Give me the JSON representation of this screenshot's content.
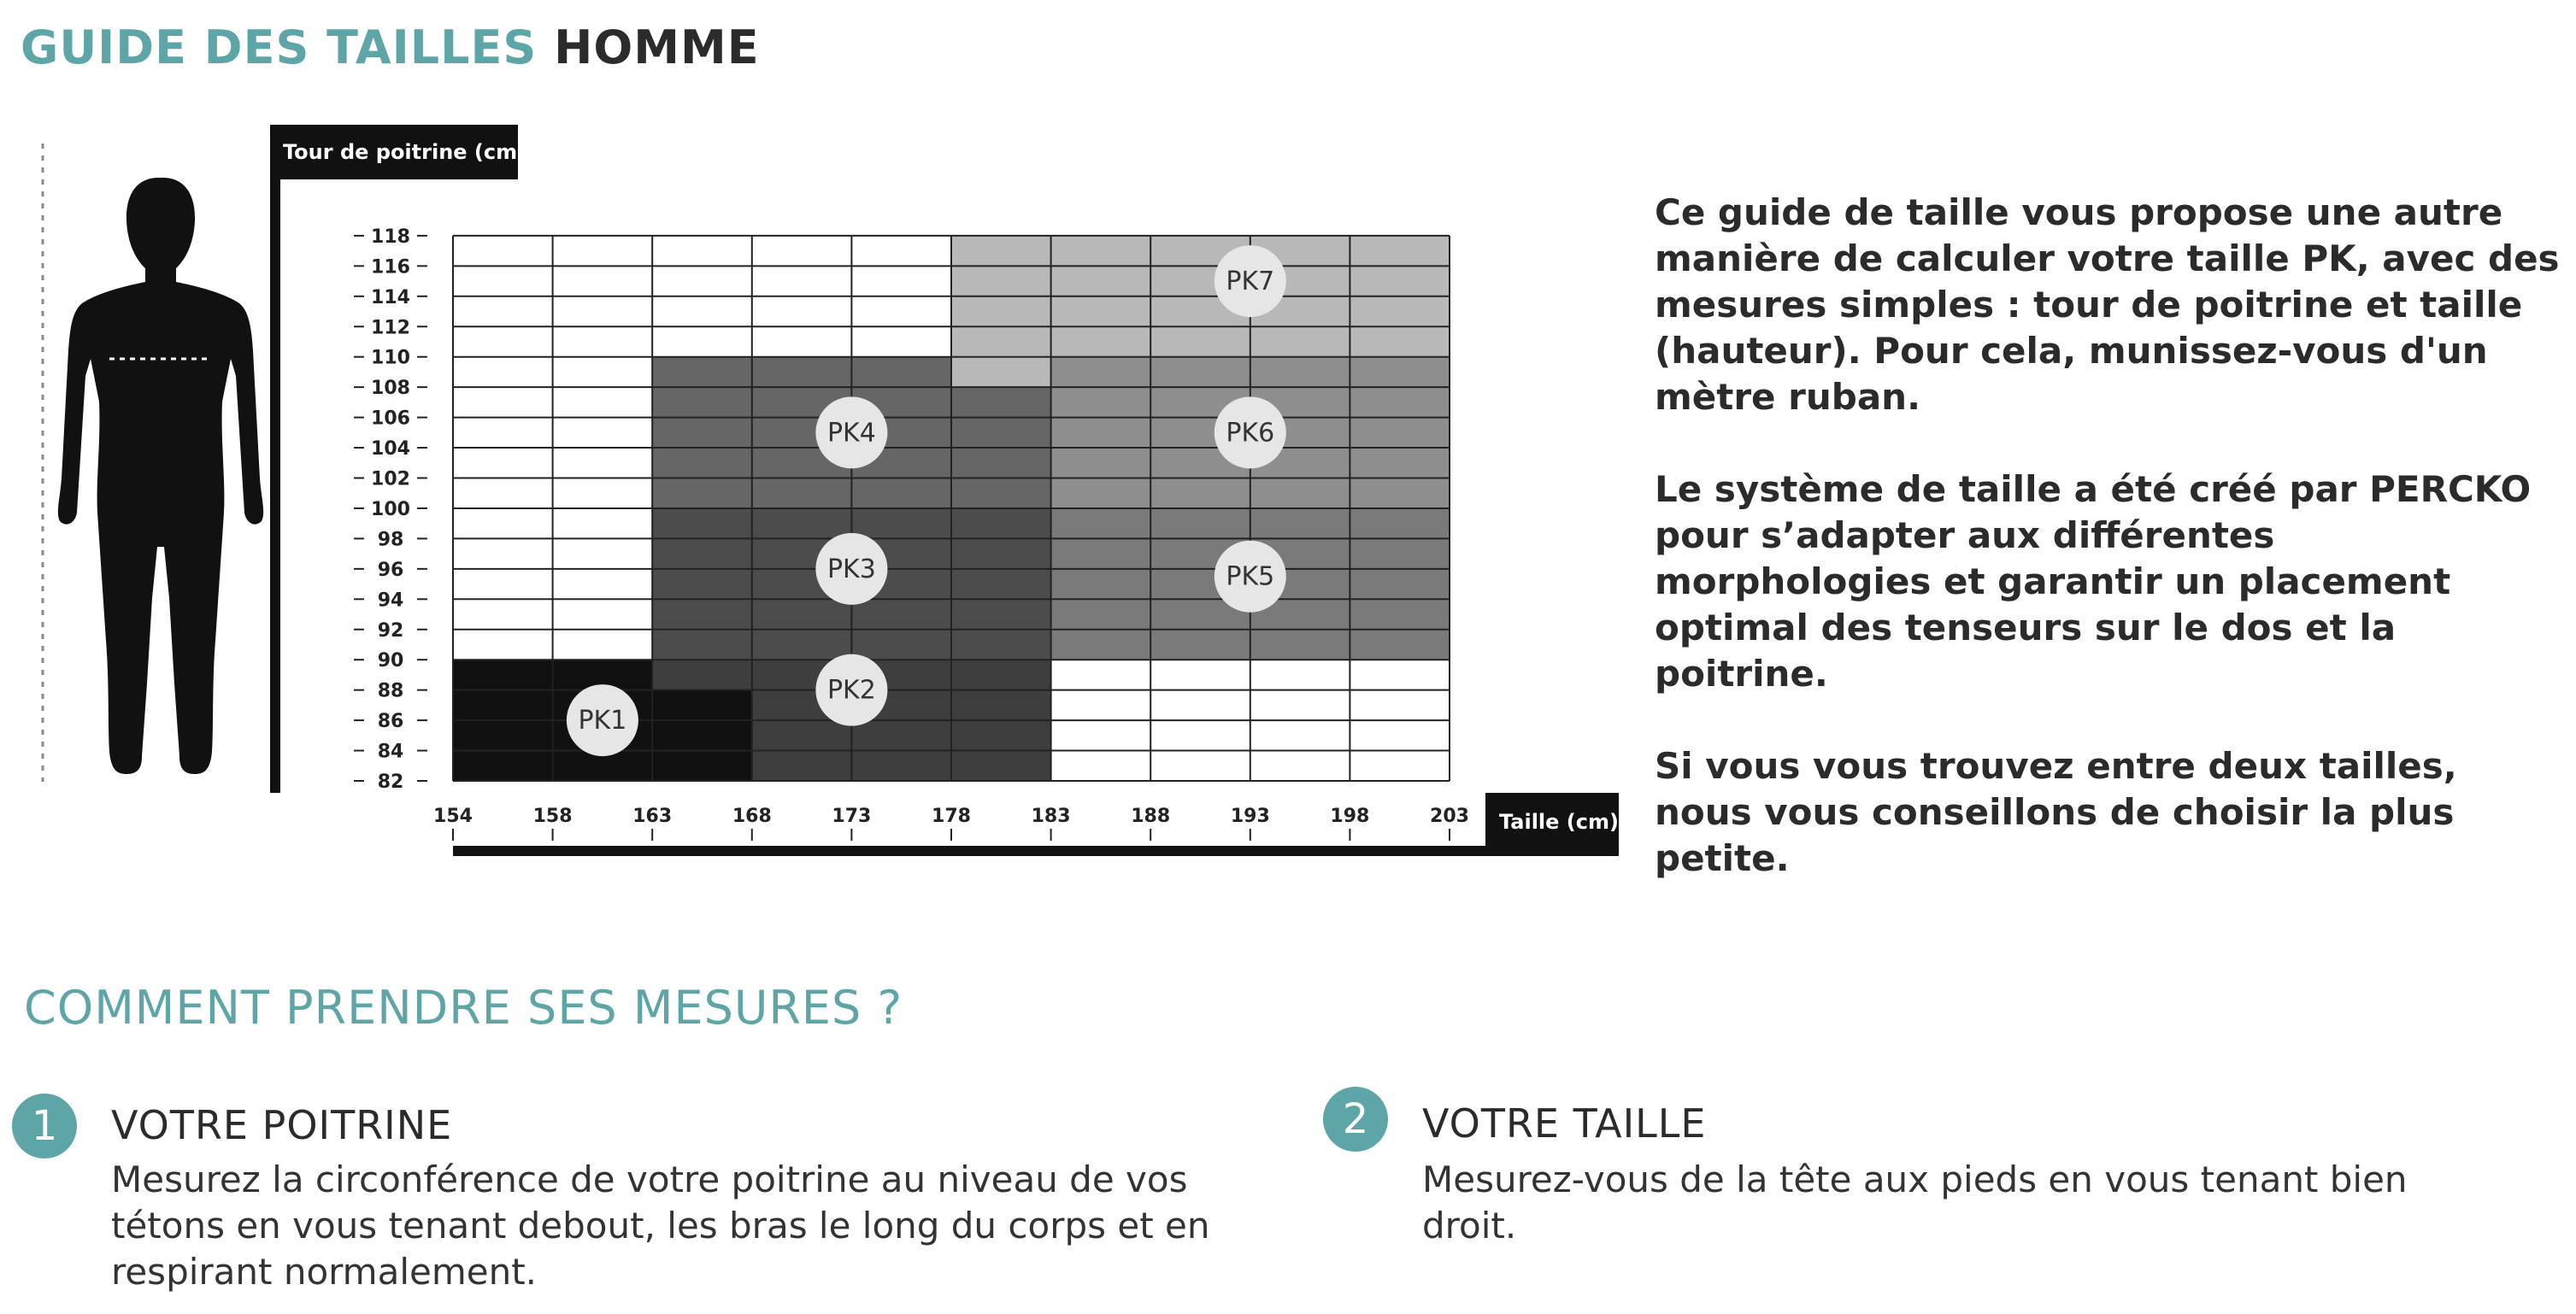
{
  "title": {
    "part1": "GUIDE DES TAILLES",
    "part2": "HOMME"
  },
  "chart_data": {
    "type": "heatmap",
    "ylabel": "Tour de poitrine (cm)",
    "xlabel": "Taille (cm)",
    "x_ticks": [
      "154",
      "158",
      "163",
      "168",
      "173",
      "178",
      "183",
      "188",
      "193",
      "198",
      "203"
    ],
    "y_ticks": [
      "82",
      "84",
      "86",
      "88",
      "90",
      "92",
      "94",
      "96",
      "98",
      "100",
      "102",
      "104",
      "106",
      "108",
      "110",
      "112",
      "114",
      "116",
      "118"
    ],
    "cell_colors": {
      "PK1": "#111111",
      "PK2": "#3e3e3e",
      "PK3": "#4c4c4c",
      "PK4": "#666666",
      "PK5": "#7a7a7a",
      "PK6": "#8e8e8e",
      "PK7": "#b8b8b8",
      "none": "#ffffff"
    },
    "grid": [
      [
        "PK1",
        "PK1",
        "PK1",
        "PK2",
        "PK2",
        "PK2",
        "none",
        "none",
        "none",
        "none"
      ],
      [
        "PK1",
        "PK1",
        "PK1",
        "PK2",
        "PK2",
        "PK2",
        "none",
        "none",
        "none",
        "none"
      ],
      [
        "PK1",
        "PK1",
        "PK1",
        "PK2",
        "PK2",
        "PK2",
        "none",
        "none",
        "none",
        "none"
      ],
      [
        "PK1",
        "PK1",
        "PK2",
        "PK2",
        "PK2",
        "PK2",
        "none",
        "none",
        "none",
        "none"
      ],
      [
        "none",
        "none",
        "PK3",
        "PK3",
        "PK3",
        "PK3",
        "PK5",
        "PK5",
        "PK5",
        "PK5"
      ],
      [
        "none",
        "none",
        "PK3",
        "PK3",
        "PK3",
        "PK3",
        "PK5",
        "PK5",
        "PK5",
        "PK5"
      ],
      [
        "none",
        "none",
        "PK3",
        "PK3",
        "PK3",
        "PK3",
        "PK5",
        "PK5",
        "PK5",
        "PK5"
      ],
      [
        "none",
        "none",
        "PK3",
        "PK3",
        "PK3",
        "PK3",
        "PK5",
        "PK5",
        "PK5",
        "PK5"
      ],
      [
        "none",
        "none",
        "PK3",
        "PK3",
        "PK3",
        "PK3",
        "PK5",
        "PK5",
        "PK5",
        "PK5"
      ],
      [
        "none",
        "none",
        "PK4",
        "PK4",
        "PK4",
        "PK4",
        "PK6",
        "PK6",
        "PK6",
        "PK6"
      ],
      [
        "none",
        "none",
        "PK4",
        "PK4",
        "PK4",
        "PK4",
        "PK6",
        "PK6",
        "PK6",
        "PK6"
      ],
      [
        "none",
        "none",
        "PK4",
        "PK4",
        "PK4",
        "PK4",
        "PK6",
        "PK6",
        "PK6",
        "PK6"
      ],
      [
        "none",
        "none",
        "PK4",
        "PK4",
        "PK4",
        "PK4",
        "PK6",
        "PK6",
        "PK6",
        "PK6"
      ],
      [
        "none",
        "none",
        "PK4",
        "PK4",
        "PK4",
        "PK7",
        "PK6",
        "PK6",
        "PK6",
        "PK6"
      ],
      [
        "none",
        "none",
        "none",
        "none",
        "none",
        "PK7",
        "PK7",
        "PK7",
        "PK7",
        "PK7"
      ],
      [
        "none",
        "none",
        "none",
        "none",
        "none",
        "PK7",
        "PK7",
        "PK7",
        "PK7",
        "PK7"
      ],
      [
        "none",
        "none",
        "none",
        "none",
        "none",
        "PK7",
        "PK7",
        "PK7",
        "PK7",
        "PK7"
      ],
      [
        "none",
        "none",
        "none",
        "none",
        "none",
        "PK7",
        "PK7",
        "PK7",
        "PK7",
        "PK7"
      ]
    ],
    "zones": [
      {
        "label": "PK1",
        "x": 160.5,
        "y": 86
      },
      {
        "label": "PK2",
        "x": 173,
        "y": 88
      },
      {
        "label": "PK3",
        "x": 173,
        "y": 96
      },
      {
        "label": "PK4",
        "x": 173,
        "y": 105
      },
      {
        "label": "PK5",
        "x": 193,
        "y": 95.5
      },
      {
        "label": "PK6",
        "x": 193,
        "y": 105
      },
      {
        "label": "PK7",
        "x": 193,
        "y": 115
      }
    ]
  },
  "intro": {
    "p1": "Ce guide de taille vous propose une autre manière de calculer votre taille PK, avec des mesures simples : tour de poitrine et taille (hauteur). Pour cela, munissez-vous d'un mètre ruban.",
    "p2": "Le système de taille a été créé par PERCKO pour s’adapter aux différentes morphologies et garantir un placement optimal des tenseurs sur le dos et la poitrine.",
    "p3": "Si vous vous trouvez entre deux tailles, nous vous conseillons de choisir la plus petite."
  },
  "howto": {
    "title": "COMMENT PRENDRE SES MESURES ?",
    "steps": [
      {
        "num": "1",
        "label": "VOTRE POITRINE",
        "text": "Mesurez la circonférence de votre poitrine au niveau de vos tétons en vous tenant debout, les bras le long du corps et en respirant normalement."
      },
      {
        "num": "2",
        "label": "VOTRE TAILLE",
        "text": "Mesurez-vous de la tête aux pieds en vous tenant bien droit."
      }
    ]
  },
  "colors": {
    "accent": "#5da5a7",
    "text_dark": "#2b2b2b"
  }
}
